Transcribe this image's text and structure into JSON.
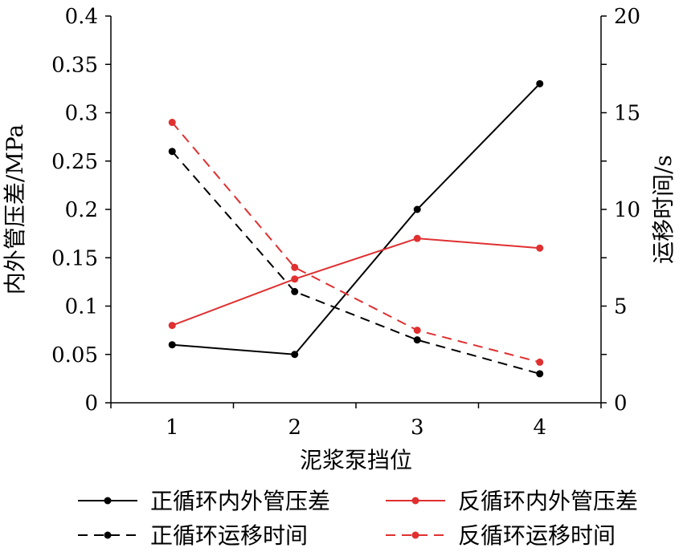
{
  "chart_data": {
    "type": "line",
    "categories": [
      "1",
      "2",
      "3",
      "4"
    ],
    "xlabel": "泥浆泵挡位",
    "y_left_label": "内外管压差/MPa",
    "y_right_label": "运移时间/s",
    "y_left_lim": [
      0,
      0.4
    ],
    "y_right_lim": [
      0,
      20
    ],
    "y_left_ticks": [
      "0",
      "0.05",
      "0.1",
      "0.15",
      "0.2",
      "0.25",
      "0.3",
      "0.35",
      "0.4"
    ],
    "y_right_ticks": [
      "0",
      "5",
      "10",
      "15",
      "20"
    ],
    "grid": false,
    "legend_position": "bottom",
    "series": [
      {
        "name": "正循环内外管压差",
        "axis": "left",
        "color": "#000000",
        "dash": "solid",
        "values": [
          0.06,
          0.05,
          0.2,
          0.33
        ]
      },
      {
        "name": "反循环内外管压差",
        "axis": "left",
        "color": "#e03030",
        "dash": "solid",
        "values": [
          0.08,
          0.128,
          0.17,
          0.16
        ]
      },
      {
        "name": "正循环运移时间",
        "axis": "right",
        "color": "#000000",
        "dash": "dashed",
        "values": [
          13.0,
          5.75,
          3.25,
          1.5
        ]
      },
      {
        "name": "反循环运移时间",
        "axis": "right",
        "color": "#e03030",
        "dash": "dashed",
        "values": [
          14.5,
          7.0,
          3.75,
          2.1
        ]
      }
    ]
  }
}
